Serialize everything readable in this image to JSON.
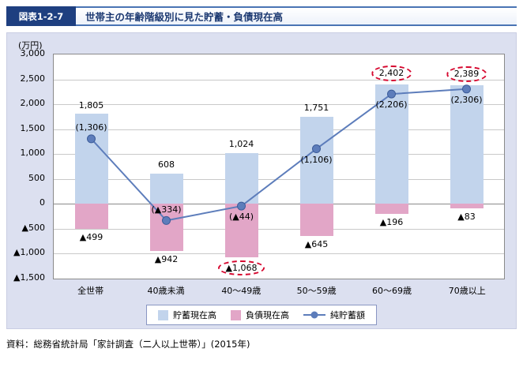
{
  "header": {
    "figure_label": "図表1-2-7",
    "title": "世帯主の年齢階級別に見た貯蓄・負債現在高"
  },
  "chart_data": {
    "type": "bar",
    "unit": "(万円)",
    "categories": [
      "全世帯",
      "40歳未満",
      "40～49歳",
      "50～59歳",
      "60～69歳",
      "70歳以上"
    ],
    "series": [
      {
        "name": "貯蓄現在高",
        "type": "bar",
        "color": "#c2d4ec",
        "values": [
          1805,
          608,
          1024,
          1751,
          2402,
          2389
        ],
        "labels": [
          "1,805",
          "608",
          "1,024",
          "1,751",
          "2,402",
          "2,389"
        ],
        "circled": [
          false,
          false,
          false,
          false,
          true,
          true
        ]
      },
      {
        "name": "負債現在高",
        "type": "bar",
        "color": "#e2a6c7",
        "values": [
          -499,
          -942,
          -1068,
          -645,
          -196,
          -83
        ],
        "labels": [
          "▲499",
          "▲942",
          "▲1,068",
          "▲645",
          "▲196",
          "▲83"
        ],
        "circled": [
          false,
          false,
          true,
          false,
          false,
          false
        ]
      },
      {
        "name": "純貯蓄額",
        "type": "line",
        "color": "#5d7dbb",
        "values": [
          1306,
          -334,
          -44,
          1106,
          2206,
          2306
        ],
        "labels": [
          "(1,306)",
          "(▲334)",
          "(▲44)",
          "(1,106)",
          "(2,206)",
          "(2,306)"
        ],
        "label_side": [
          "above",
          "above",
          "below",
          "below",
          "below",
          "below"
        ]
      }
    ],
    "ylim": [
      -1500,
      3000
    ],
    "ytick_step": 500,
    "ytick_labels": [
      "3,000",
      "2,500",
      "2,000",
      "1,500",
      "1,000",
      "500",
      "0",
      "▲500",
      "▲1,000",
      "▲1,500"
    ],
    "grid": true,
    "legend_position": "bottom",
    "annotation_color": "#d6082f"
  },
  "legend": {
    "items": [
      {
        "label": "貯蓄現在高",
        "swatch": "square",
        "color": "#c2d4ec"
      },
      {
        "label": "負債現在高",
        "swatch": "square",
        "color": "#e2a6c7"
      },
      {
        "label": "純貯蓄額",
        "swatch": "line-dot",
        "color": "#5d7dbb"
      }
    ]
  },
  "source": "資料：総務省統計局「家計調査（二人以上世帯）」(2015年)"
}
